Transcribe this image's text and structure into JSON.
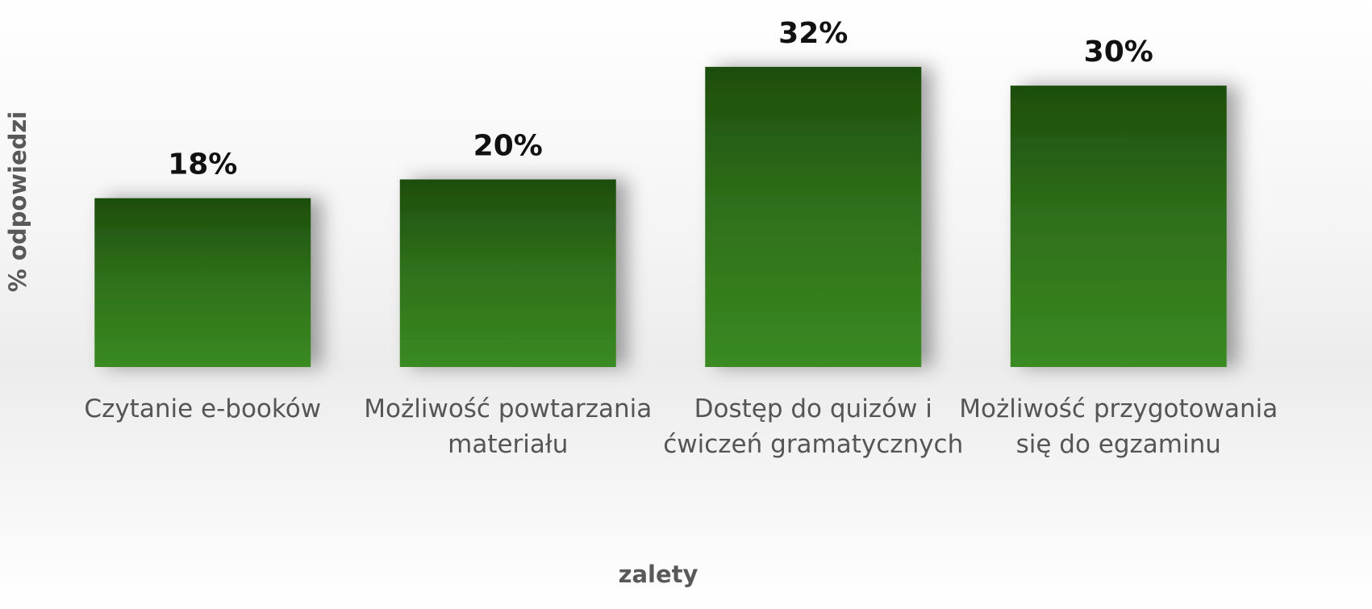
{
  "chart_data": {
    "type": "bar",
    "categories": [
      "Czytanie e-booków",
      "Możliwość powtarzania materiału",
      "Dostęp do quizów i ćwiczeń gramatycznych",
      "Możliwość przygotowania się do egzaminu"
    ],
    "values": [
      18,
      20,
      32,
      30
    ],
    "value_labels": [
      "18%",
      "20%",
      "32%",
      "30%"
    ],
    "x_label": "zalety",
    "y_label": "% odpowiedzi",
    "color": "#2e6e1a",
    "ylim": [
      0,
      35
    ]
  }
}
